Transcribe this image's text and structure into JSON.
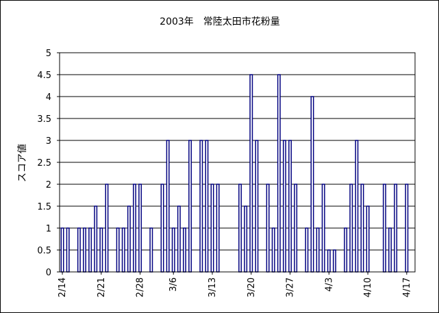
{
  "chart_data": {
    "type": "bar",
    "title": "2003年　常陸太田市花粉量",
    "ylabel": "スコア値",
    "xlabel": "",
    "ylim": [
      0,
      5
    ],
    "yticks": [
      "0",
      "0.5",
      "1",
      "1.5",
      "2",
      "2.5",
      "3",
      "3.5",
      "4",
      "4.5",
      "5"
    ],
    "grid": true,
    "bar_fill": "#ffffff",
    "bar_stroke": "#000080",
    "categories": [
      "2/14",
      "2/15",
      "2/16",
      "2/17",
      "2/18",
      "2/19",
      "2/20",
      "2/21",
      "2/22",
      "2/23",
      "2/24",
      "2/25",
      "2/26",
      "2/27",
      "2/28",
      "3/1",
      "3/2",
      "3/3",
      "3/4",
      "3/5",
      "3/6",
      "3/7",
      "3/8",
      "3/9",
      "3/10",
      "3/11",
      "3/12",
      "3/13",
      "3/14",
      "3/15",
      "3/16",
      "3/17",
      "3/18",
      "3/19",
      "3/20",
      "3/21",
      "3/22",
      "3/23",
      "3/24",
      "3/25",
      "3/26",
      "3/27",
      "3/28",
      "3/29",
      "3/30",
      "3/31",
      "4/1",
      "4/2",
      "4/3",
      "4/4",
      "4/5",
      "4/6",
      "4/7",
      "4/8",
      "4/9",
      "4/10",
      "4/11",
      "4/12",
      "4/13",
      "4/14",
      "4/15",
      "4/16",
      "4/17",
      "4/18"
    ],
    "x_tick_labels": [
      "2/14",
      "2/21",
      "2/28",
      "3/6",
      "3/13",
      "3/20",
      "3/27",
      "4/3",
      "4/10",
      "4/17"
    ],
    "values": [
      1,
      1,
      null,
      1,
      1,
      1,
      1.5,
      1,
      2,
      null,
      1,
      1,
      1.5,
      2,
      2,
      null,
      1,
      null,
      2,
      3,
      1,
      1.5,
      1,
      3,
      null,
      3,
      3,
      2,
      2,
      null,
      null,
      null,
      2,
      1.5,
      4.5,
      3,
      null,
      2,
      1,
      4.5,
      3,
      3,
      2,
      null,
      1,
      4,
      1,
      2,
      0.5,
      0.5,
      null,
      1,
      2,
      3,
      2,
      1.5,
      null,
      null,
      2,
      1,
      2,
      null,
      2,
      null
    ]
  }
}
